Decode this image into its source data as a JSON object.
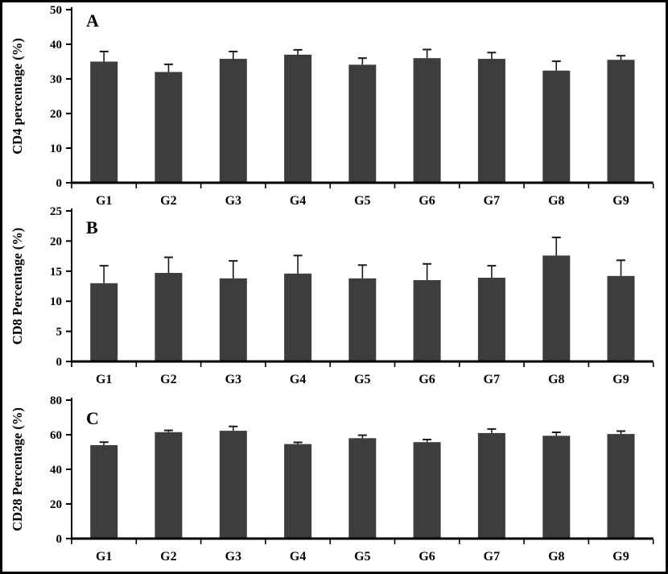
{
  "figure": {
    "description": "Three stacked bar-chart panels A, B, C comparing T-cell marker percentages across groups G1-G9"
  },
  "colors": {
    "bar": "#3d3d3d",
    "axis": "#000000",
    "error_bar": "#1a1a1a",
    "background": "#ffffff",
    "border": "#000000"
  },
  "chart_data": [
    {
      "type": "bar",
      "panel_label": "A",
      "title": "",
      "xlabel": "",
      "ylabel": "CD4 percentage (%)",
      "categories": [
        "G1",
        "G2",
        "G3",
        "G4",
        "G5",
        "G6",
        "G7",
        "G8",
        "G9"
      ],
      "values": [
        35.0,
        32.0,
        35.8,
        37.0,
        34.1,
        36.0,
        35.8,
        32.4,
        35.5
      ],
      "errors": [
        2.9,
        2.2,
        2.1,
        1.4,
        1.9,
        2.5,
        1.8,
        2.7,
        1.2
      ],
      "ylim": [
        0,
        50
      ],
      "yticks": [
        0,
        10,
        20,
        30,
        40,
        50
      ],
      "grid": false,
      "legend": false
    },
    {
      "type": "bar",
      "panel_label": "B",
      "title": "",
      "xlabel": "",
      "ylabel": "CD8 Percentage (%)",
      "categories": [
        "G1",
        "G2",
        "G3",
        "G4",
        "G5",
        "G6",
        "G7",
        "G8",
        "G9"
      ],
      "values": [
        13.0,
        14.7,
        13.8,
        14.6,
        13.8,
        13.5,
        13.9,
        17.6,
        14.2
      ],
      "errors": [
        2.9,
        2.6,
        2.9,
        3.0,
        2.2,
        2.7,
        2.0,
        3.0,
        2.6
      ],
      "ylim": [
        0,
        25
      ],
      "yticks": [
        0,
        5,
        10,
        15,
        20,
        25
      ],
      "grid": false,
      "legend": false
    },
    {
      "type": "bar",
      "panel_label": "C",
      "title": "",
      "xlabel": "",
      "ylabel": "CD28 Percentage (%)",
      "categories": [
        "G1",
        "G2",
        "G3",
        "G4",
        "G5",
        "G6",
        "G7",
        "G8",
        "G9"
      ],
      "values": [
        54.0,
        61.5,
        62.3,
        54.6,
        58.0,
        55.7,
        61.0,
        59.4,
        60.4
      ],
      "errors": [
        1.7,
        1.0,
        2.5,
        1.0,
        1.7,
        1.5,
        2.3,
        2.0,
        1.7
      ],
      "ylim": [
        0,
        80
      ],
      "yticks": [
        0,
        20,
        40,
        60,
        80
      ],
      "grid": false,
      "legend": false
    }
  ]
}
